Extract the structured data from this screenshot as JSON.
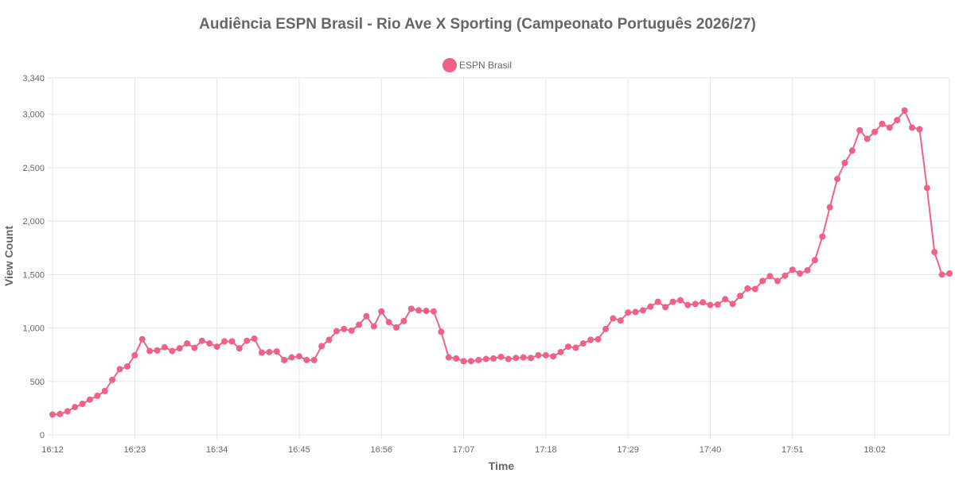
{
  "chart_data": {
    "type": "line",
    "title": "Audiência ESPN Brasil - Rio Ave X Sporting (Campeonato Português 2026/27)",
    "xlabel": "Time",
    "ylabel": "View Count",
    "ylim": [
      0,
      3340
    ],
    "y_ticks": [
      0,
      500,
      1000,
      1500,
      2000,
      2500,
      3000,
      3340
    ],
    "y_tick_labels": [
      "0",
      "500",
      "1,000",
      "1,500",
      "2,000",
      "2,500",
      "3,000",
      "3,340"
    ],
    "x_tick_labels": [
      "16:12",
      "16:23",
      "16:34",
      "16:45",
      "16:56",
      "17:07",
      "17:18",
      "17:29",
      "17:40",
      "17:51",
      "18:02"
    ],
    "grid": true,
    "legend_position": "top-center",
    "series": [
      {
        "name": "ESPN Brasil",
        "color": "#f06188",
        "values": [
          190,
          195,
          220,
          260,
          290,
          330,
          365,
          410,
          515,
          615,
          640,
          745,
          895,
          785,
          790,
          820,
          785,
          810,
          855,
          815,
          880,
          855,
          825,
          875,
          875,
          810,
          880,
          900,
          770,
          775,
          780,
          700,
          725,
          735,
          700,
          700,
          830,
          890,
          970,
          990,
          975,
          1030,
          1110,
          1015,
          1155,
          1055,
          1005,
          1065,
          1180,
          1165,
          1160,
          1155,
          965,
          725,
          715,
          690,
          690,
          700,
          710,
          715,
          730,
          710,
          720,
          725,
          720,
          745,
          745,
          735,
          775,
          825,
          815,
          855,
          890,
          895,
          990,
          1090,
          1070,
          1145,
          1150,
          1165,
          1200,
          1245,
          1195,
          1245,
          1260,
          1215,
          1225,
          1240,
          1215,
          1220,
          1270,
          1225,
          1300,
          1370,
          1365,
          1440,
          1485,
          1440,
          1490,
          1545,
          1510,
          1540,
          1635,
          1855,
          2130,
          2395,
          2545,
          2660,
          2850,
          2770,
          2835,
          2910,
          2875,
          2945,
          3035,
          2875,
          2860,
          2310,
          1710,
          1500,
          1510
        ]
      }
    ]
  }
}
